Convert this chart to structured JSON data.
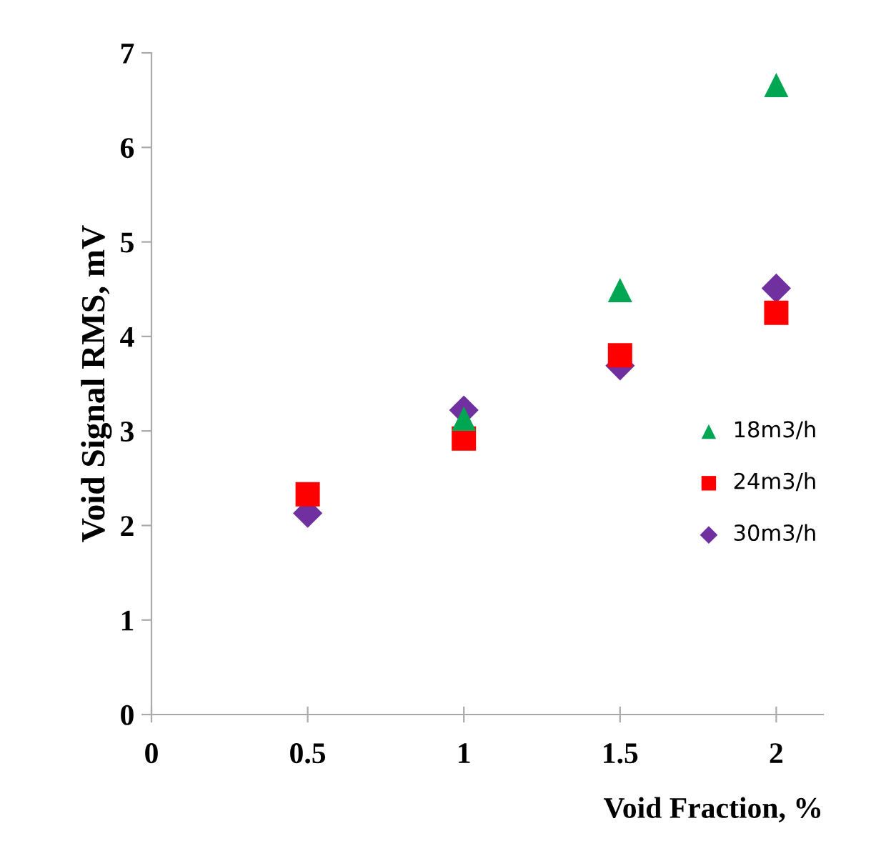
{
  "chart_data": {
    "type": "scatter",
    "xlabel": "Void Fraction, %",
    "ylabel": "Void Signal RMS, mV",
    "x": [
      0.5,
      1,
      1.5,
      2
    ],
    "series": [
      {
        "name": "18m3/h",
        "color": "#00a651",
        "marker": "triangle",
        "values": [
          null,
          3.13,
          4.49,
          6.66
        ]
      },
      {
        "name": "24m3/h",
        "color": "#ff0000",
        "marker": "square",
        "values": [
          2.33,
          2.92,
          3.8,
          4.25
        ]
      },
      {
        "name": "30m3/h",
        "color": "#7030a0",
        "marker": "diamond",
        "values": [
          2.13,
          3.22,
          3.69,
          4.51
        ]
      }
    ],
    "xlim": [
      0,
      2.15
    ],
    "xticks": [
      0,
      0.5,
      1,
      1.5,
      2
    ],
    "ylim": [
      0,
      7
    ],
    "yticks": [
      0,
      1,
      2,
      3,
      4,
      5,
      6,
      7
    ],
    "grid": false,
    "legend": "right"
  }
}
